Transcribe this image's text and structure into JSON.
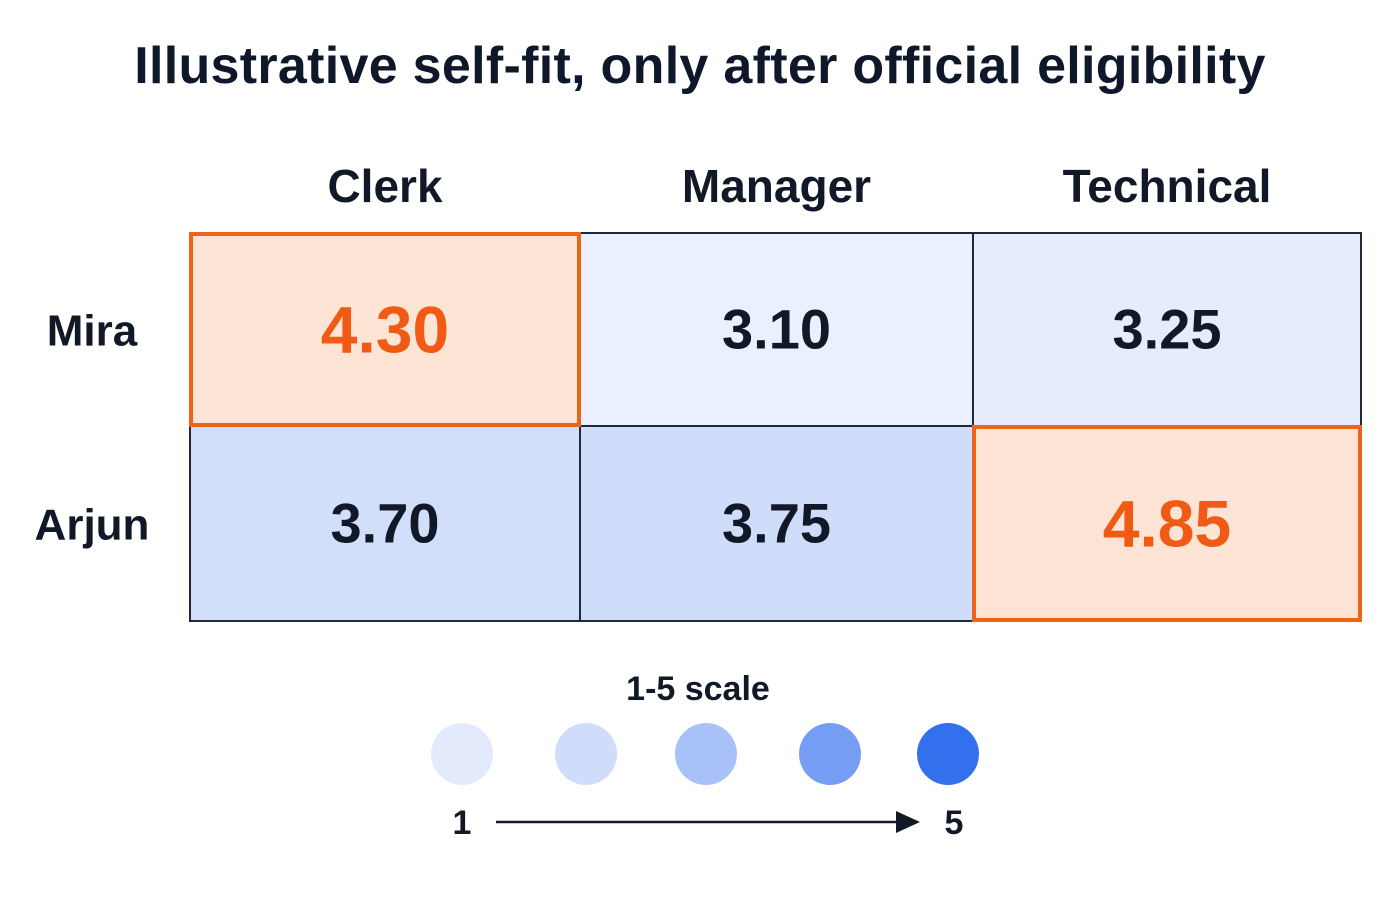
{
  "chart_data": {
    "type": "heatmap",
    "title": "Illustrative self-fit, only after official eligibility",
    "columns": [
      "Clerk",
      "Manager",
      "Technical"
    ],
    "rows": [
      "Mira",
      "Arjun"
    ],
    "values": [
      [
        4.3,
        3.1,
        3.25
      ],
      [
        3.7,
        3.75,
        4.85
      ]
    ],
    "value_labels": [
      [
        "4.30",
        "3.10",
        "3.25"
      ],
      [
        "3.70",
        "3.75",
        "4.85"
      ]
    ],
    "highlighted": [
      {
        "row": "Mira",
        "column": "Clerk"
      },
      {
        "row": "Arjun",
        "column": "Technical"
      }
    ],
    "scale": {
      "label": "1-5 scale",
      "min": 1,
      "max": 5,
      "min_label": "1",
      "max_label": "5",
      "steps": [
        1,
        2,
        3,
        4,
        5
      ]
    },
    "colors": {
      "highlight_fill": "#fde4d4",
      "highlight_border": "#f06418",
      "highlight_text": "#f05a14",
      "cell_text": "#111827",
      "grid_line": "#1f2937",
      "scale_low": "#e2eafc",
      "scale_high": "#3370ee"
    }
  }
}
